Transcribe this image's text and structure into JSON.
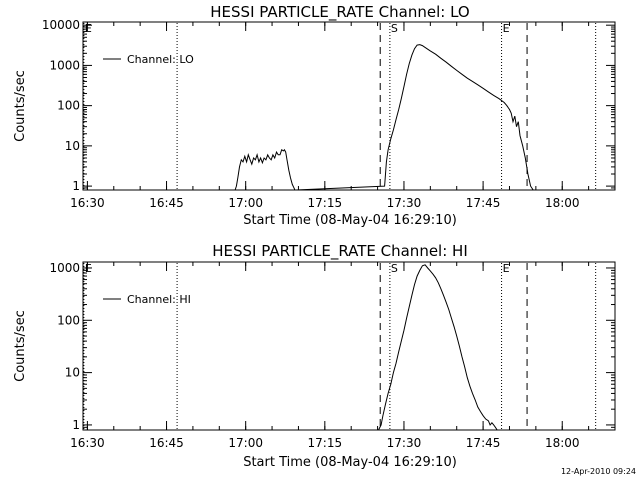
{
  "timestamp": "12-Apr-2010 09:24",
  "chart_data": [
    {
      "type": "line",
      "title": "HESSI PARTICLE_RATE Channel: LO",
      "xlabel": "Start Time (08-May-04 16:29:10)",
      "ylabel": "Counts/sec",
      "yscale": "log",
      "ylim": [
        0.8,
        12000
      ],
      "xlim": [
        "16:29:10",
        "18:10:00"
      ],
      "x_ticks": [
        "16:30",
        "16:45",
        "17:00",
        "17:15",
        "17:30",
        "17:45",
        "18:00"
      ],
      "y_ticks": [
        "1",
        "10",
        "100",
        "1000",
        "10000"
      ],
      "legend": "top-left",
      "series": [
        {
          "name": "Channel: LO",
          "x": [
            "16:58:00",
            "16:58:15",
            "16:58:30",
            "16:58:50",
            "16:59:10",
            "16:59:30",
            "16:59:50",
            "17:00:10",
            "17:00:30",
            "17:00:50",
            "17:01:10",
            "17:01:30",
            "17:01:50",
            "17:02:10",
            "17:02:30",
            "17:02:50",
            "17:03:10",
            "17:03:30",
            "17:03:50",
            "17:04:10",
            "17:04:30",
            "17:04:50",
            "17:05:10",
            "17:05:30",
            "17:05:50",
            "17:06:10",
            "17:06:30",
            "17:06:50",
            "17:07:10",
            "17:07:20",
            "17:07:35",
            "17:07:50",
            "17:08:10",
            "17:08:30",
            "17:08:50",
            "17:09:10",
            "17:09:20",
            "17:09:30",
            "17:26:20",
            "17:26:40",
            "17:27:00",
            "17:27:30",
            "17:28:00",
            "17:28:30",
            "17:29:00",
            "17:29:30",
            "17:30:00",
            "17:30:30",
            "17:31:00",
            "17:31:30",
            "17:32:00",
            "17:32:30",
            "17:33:00",
            "17:33:30",
            "17:34:00",
            "17:35:00",
            "17:36:00",
            "17:37:00",
            "17:38:00",
            "17:39:00",
            "17:40:00",
            "17:41:00",
            "17:42:00",
            "17:43:00",
            "17:44:00",
            "17:45:00",
            "17:46:00",
            "17:47:00",
            "17:48:00",
            "17:49:00",
            "17:49:30",
            "17:50:00",
            "17:50:20",
            "17:50:40",
            "17:51:00",
            "17:51:20",
            "17:51:40",
            "17:52:00",
            "17:52:30",
            "17:53:00",
            "17:53:30",
            "17:54:00",
            "17:54:30",
            "17:55:00"
          ],
          "y": [
            0.8,
            1,
            1.6,
            3,
            4.5,
            4,
            5.5,
            4,
            6,
            4.5,
            3.5,
            5,
            4.5,
            6,
            4,
            5,
            3.8,
            5,
            4.5,
            6,
            5,
            4.5,
            6,
            5,
            7,
            6,
            6,
            8,
            7.5,
            8,
            7,
            4.5,
            2.5,
            1.6,
            1.1,
            0.9,
            0.8,
            0.8,
            1,
            4,
            8,
            15,
            25,
            45,
            80,
            150,
            300,
            600,
            1100,
            1800,
            2600,
            3200,
            3300,
            3100,
            2800,
            2300,
            1900,
            1500,
            1200,
            950,
            750,
            600,
            480,
            400,
            330,
            270,
            220,
            180,
            150,
            120,
            100,
            80,
            65,
            40,
            55,
            30,
            40,
            18,
            10,
            5,
            2,
            1,
            0.8,
            0.8
          ]
        }
      ],
      "markers": [
        {
          "label": "E",
          "time": "16:29:20",
          "style": "dotted",
          "show_label": true
        },
        {
          "label": "",
          "time": "16:47:00",
          "style": "dotted",
          "show_label": false
        },
        {
          "label": "S",
          "time": "17:27:20",
          "style": "dotted",
          "show_label": true
        },
        {
          "label": "E",
          "time": "17:48:30",
          "style": "dotted",
          "show_label": true
        },
        {
          "label": "",
          "time": "18:06:20",
          "style": "dotted",
          "show_label": false
        },
        {
          "label": "",
          "time": "17:25:30",
          "style": "dashed",
          "show_label": false
        },
        {
          "label": "",
          "time": "17:53:20",
          "style": "dashed",
          "show_label": false
        }
      ]
    },
    {
      "type": "line",
      "title": "HESSI PARTICLE_RATE Channel: HI",
      "xlabel": "Start Time (08-May-04 16:29:10)",
      "ylabel": "Counts/sec",
      "yscale": "log",
      "ylim": [
        0.8,
        1300
      ],
      "xlim": [
        "16:29:10",
        "18:10:00"
      ],
      "x_ticks": [
        "16:30",
        "16:45",
        "17:00",
        "17:15",
        "17:30",
        "17:45",
        "18:00"
      ],
      "y_ticks": [
        "1",
        "10",
        "100",
        "1000"
      ],
      "legend": "top-left",
      "series": [
        {
          "name": "Channel: HI",
          "x": [
            "17:25:10",
            "17:25:40",
            "17:26:00",
            "17:26:30",
            "17:27:00",
            "17:27:30",
            "17:28:00",
            "17:28:30",
            "17:29:00",
            "17:29:30",
            "17:30:00",
            "17:30:30",
            "17:31:00",
            "17:31:30",
            "17:32:00",
            "17:32:30",
            "17:33:00",
            "17:33:30",
            "17:34:00",
            "17:34:30",
            "17:35:00",
            "17:35:30",
            "17:36:00",
            "17:36:30",
            "17:37:00",
            "17:37:30",
            "17:38:00",
            "17:38:30",
            "17:39:00",
            "17:39:30",
            "17:40:00",
            "17:40:30",
            "17:41:00",
            "17:41:30",
            "17:42:00",
            "17:42:30",
            "17:43:00",
            "17:43:30",
            "17:44:00",
            "17:44:30",
            "17:45:00",
            "17:45:30",
            "17:46:00",
            "17:46:20",
            "17:46:40",
            "17:47:00",
            "17:47:20",
            "17:47:40",
            "17:48:00"
          ],
          "y": [
            0.8,
            1,
            1.5,
            2.5,
            4,
            6,
            10,
            15,
            25,
            40,
            65,
            110,
            180,
            300,
            480,
            700,
            900,
            1100,
            1150,
            1000,
            880,
            760,
            650,
            520,
            400,
            300,
            220,
            160,
            110,
            75,
            50,
            32,
            20,
            13,
            8,
            5.5,
            4,
            3,
            2.2,
            1.8,
            1.5,
            1.3,
            1.2,
            1,
            1.1,
            1,
            0.9,
            0.8,
            0.8
          ]
        }
      ],
      "markers": [
        {
          "label": "E",
          "time": "16:29:20",
          "style": "dotted",
          "show_label": true
        },
        {
          "label": "",
          "time": "16:47:00",
          "style": "dotted",
          "show_label": false
        },
        {
          "label": "S",
          "time": "17:27:20",
          "style": "dotted",
          "show_label": true
        },
        {
          "label": "E",
          "time": "17:48:30",
          "style": "dotted",
          "show_label": true
        },
        {
          "label": "",
          "time": "18:06:20",
          "style": "dotted",
          "show_label": false
        },
        {
          "label": "",
          "time": "17:25:30",
          "style": "dashed",
          "show_label": false
        },
        {
          "label": "",
          "time": "17:53:20",
          "style": "dashed",
          "show_label": false
        }
      ]
    }
  ]
}
